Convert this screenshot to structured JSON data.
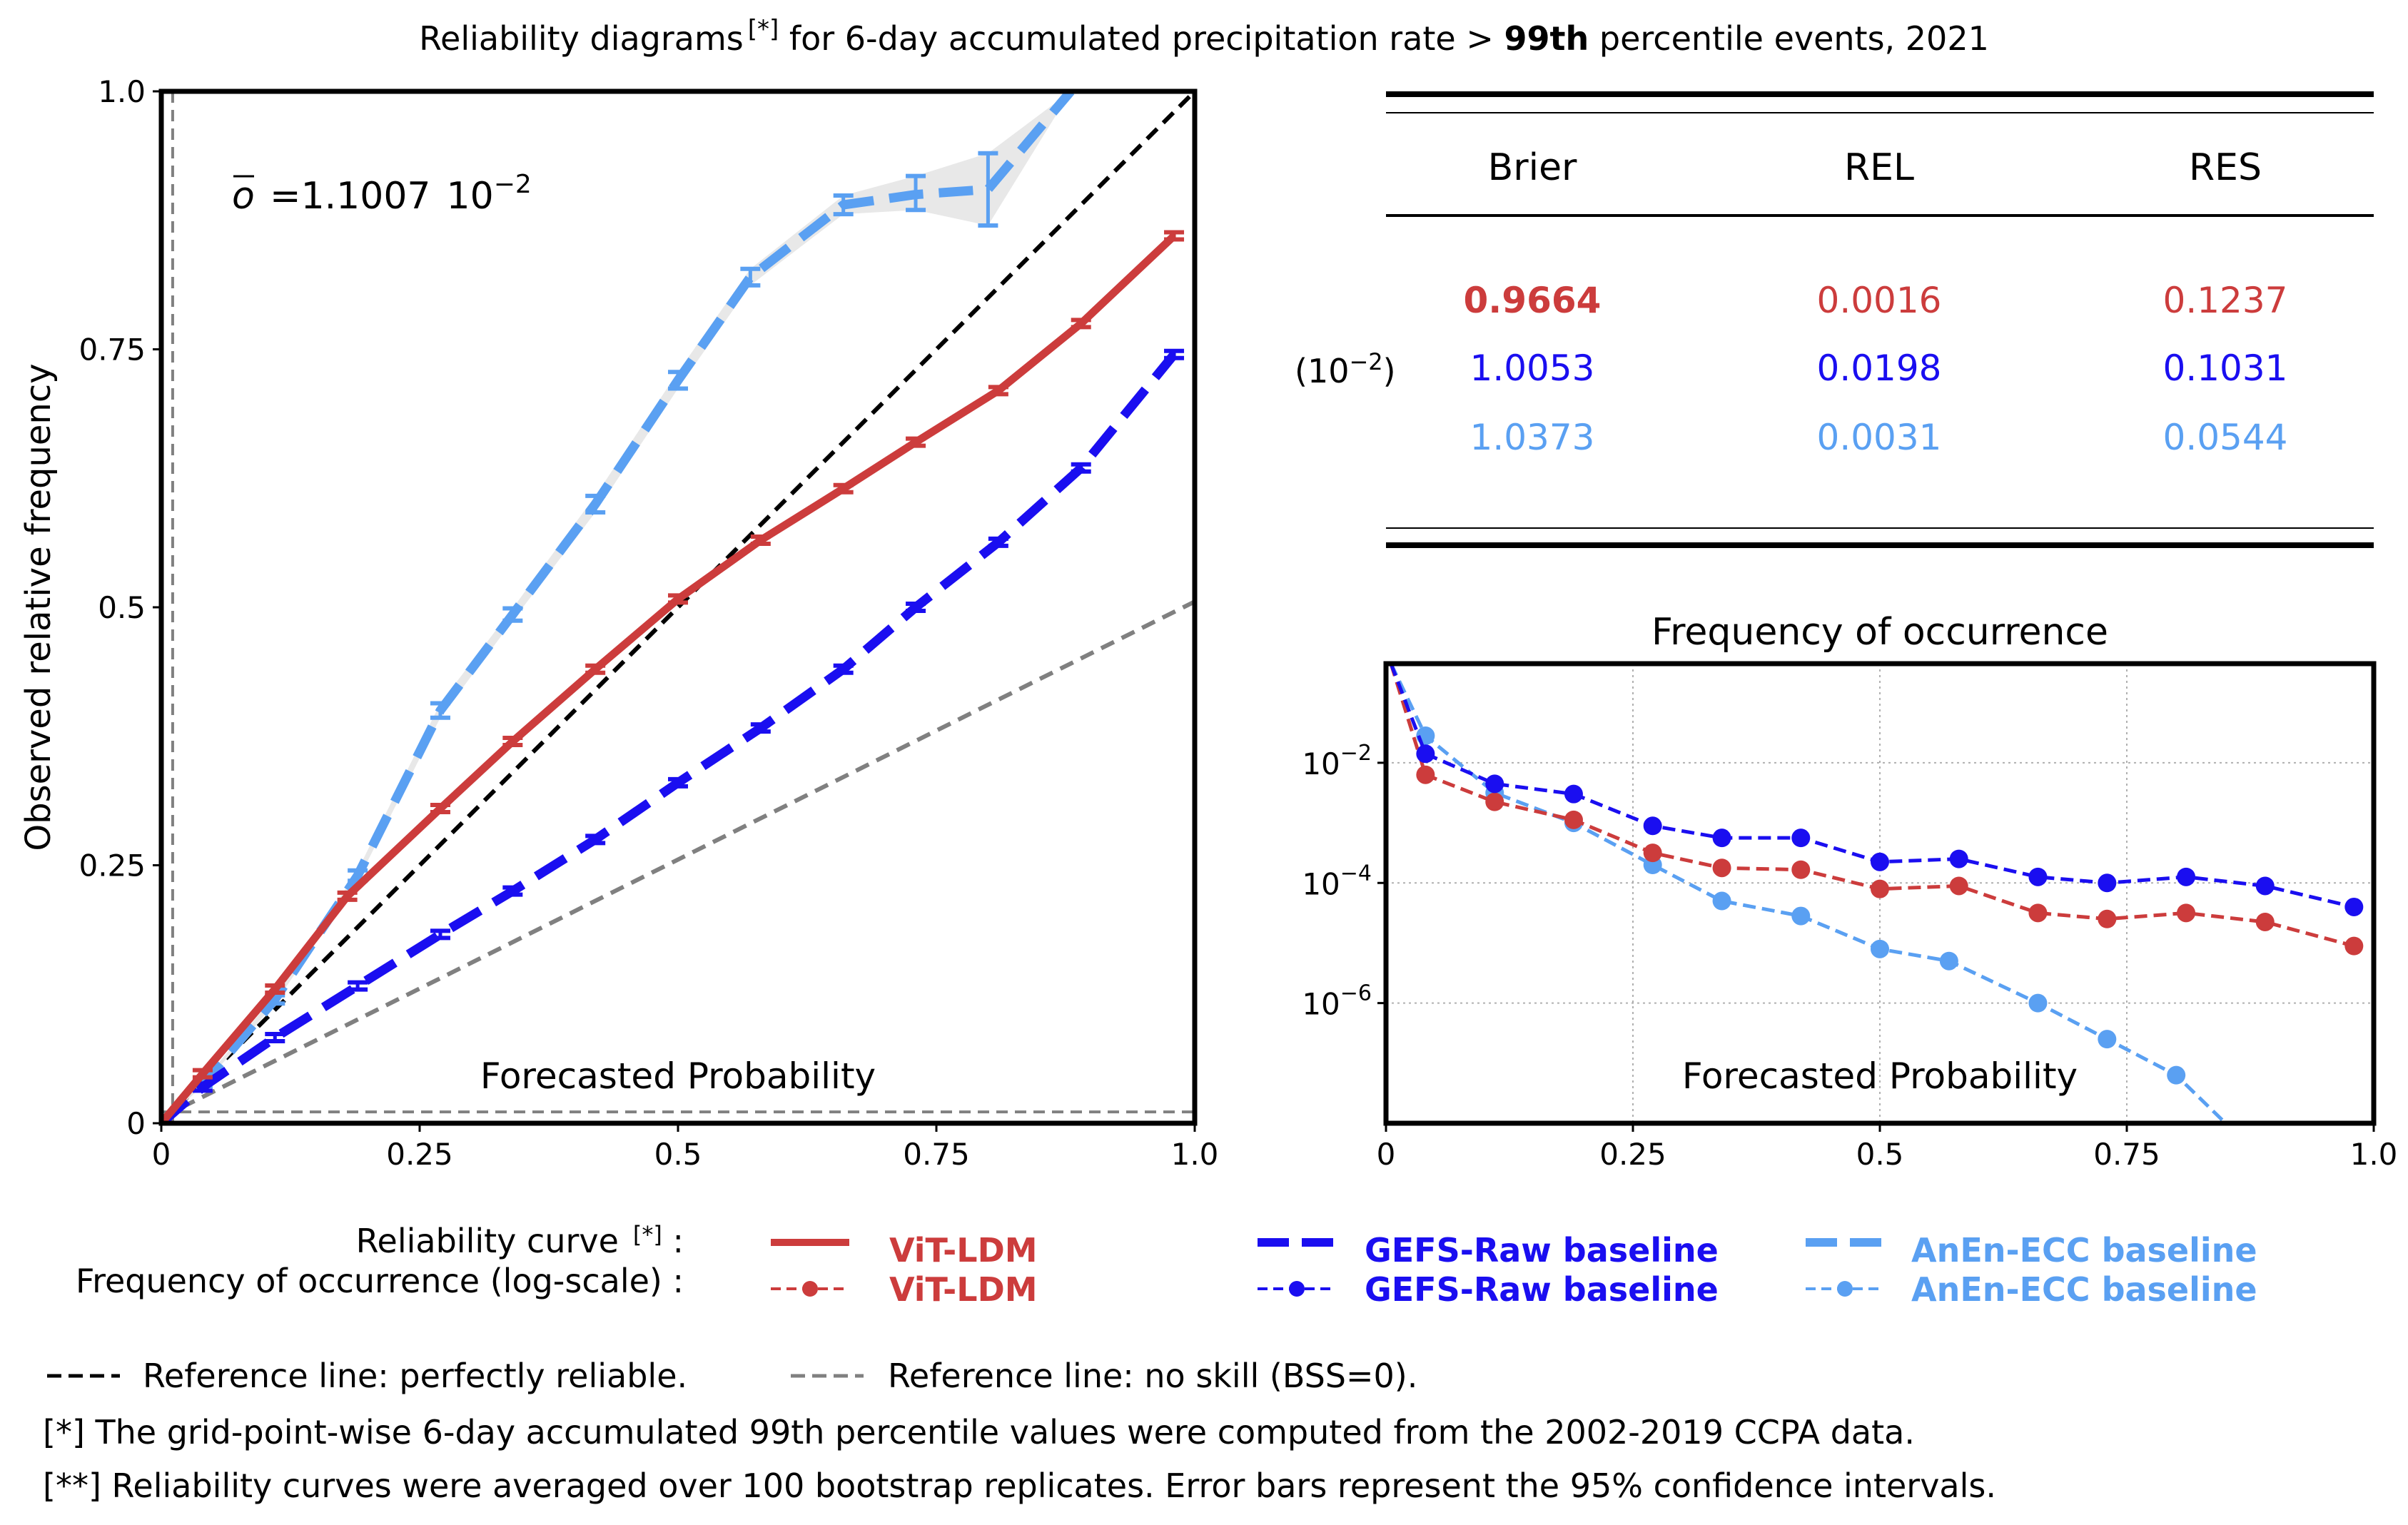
{
  "figure": {
    "title_pre": "Reliability diagrams",
    "title_sup": "[*]",
    "title_mid": " for 6-day accumulated precipitation rate > ",
    "title_bold": "99th",
    "title_post": " percentile events, 2021"
  },
  "colors": {
    "vit": "#cc3c3c",
    "gefs": "#1a0ef0",
    "anen": "#5aa0f2",
    "perfect": "#000000",
    "noskill": "#808080",
    "ci_fill": "#e8e8e8"
  },
  "chart_data": [
    {
      "type": "line",
      "title": "",
      "xlabel": "Forecasted Probability",
      "ylabel": "Observed relative frequency",
      "xlim": [
        0,
        1
      ],
      "ylim": [
        0,
        1
      ],
      "xticks": [
        "0",
        "0.25",
        "0.5",
        "0.75",
        "1.0"
      ],
      "yticks": [
        "0",
        "0.25",
        "0.5",
        "0.75",
        "1.0"
      ],
      "climatology_label": "=1.1007",
      "climatology_exp_base": "10",
      "climatology_exp": "−2",
      "climatology_value": 0.011007,
      "series": [
        {
          "name": "ViT-LDM",
          "x": [
            0,
            0.04,
            0.11,
            0.18,
            0.27,
            0.34,
            0.42,
            0.5,
            0.58,
            0.66,
            0.73,
            0.81,
            0.89,
            0.98
          ],
          "values": [
            0,
            0.048,
            0.13,
            0.22,
            0.305,
            0.37,
            0.44,
            0.508,
            0.565,
            0.615,
            0.66,
            0.71,
            0.775,
            0.86
          ]
        },
        {
          "name": "GEFS-Raw baseline",
          "x": [
            0,
            0.04,
            0.11,
            0.19,
            0.27,
            0.34,
            0.42,
            0.5,
            0.58,
            0.66,
            0.73,
            0.81,
            0.89,
            0.98
          ],
          "values": [
            0,
            0.035,
            0.083,
            0.133,
            0.183,
            0.225,
            0.275,
            0.33,
            0.383,
            0.44,
            0.5,
            0.563,
            0.635,
            0.745
          ]
        },
        {
          "name": "AnEn-ECC baseline",
          "x": [
            0,
            0.04,
            0.11,
            0.19,
            0.27,
            0.34,
            0.42,
            0.5,
            0.57,
            0.66,
            0.73,
            0.8,
            0.88
          ],
          "values": [
            0,
            0.038,
            0.12,
            0.24,
            0.4,
            0.493,
            0.6,
            0.72,
            0.82,
            0.89,
            0.9,
            0.905,
            1.0
          ],
          "ci_low": [
            0,
            0.036,
            0.116,
            0.235,
            0.393,
            0.487,
            0.592,
            0.712,
            0.812,
            0.881,
            0.885,
            0.87,
            1.0
          ],
          "ci_high": [
            0,
            0.04,
            0.124,
            0.245,
            0.407,
            0.499,
            0.608,
            0.728,
            0.828,
            0.899,
            0.918,
            0.94,
            1.0
          ]
        }
      ],
      "reference_lines": [
        {
          "name": "perfectly reliable",
          "x": [
            0,
            1
          ],
          "values": [
            0,
            1
          ]
        },
        {
          "name": "no skill",
          "x": [
            0,
            1
          ],
          "values": [
            0.0055,
            0.5055
          ]
        },
        {
          "name": "climatology horizontal",
          "x": [
            0,
            1
          ],
          "values": [
            0.011,
            0.011
          ]
        },
        {
          "name": "climatology vertical",
          "x": [
            0.011,
            0.011
          ],
          "values": [
            0,
            1
          ]
        }
      ]
    },
    {
      "type": "line",
      "title": "Frequency of occurrence",
      "xlabel": "Forecasted Probability",
      "ylabel": "",
      "xlim": [
        0,
        1
      ],
      "ylim_log10": [
        -8.0,
        -0.35
      ],
      "xticks": [
        "0",
        "0.25",
        "0.5",
        "0.75",
        "1.0"
      ],
      "yticks": [
        {
          "base": "10",
          "exp": "−2",
          "log10": -2
        },
        {
          "base": "10",
          "exp": "−4",
          "log10": -4
        },
        {
          "base": "10",
          "exp": "−6",
          "log10": -6
        }
      ],
      "series": [
        {
          "name": "ViT-LDM",
          "x": [
            0.005,
            0.04,
            0.11,
            0.19,
            0.27,
            0.34,
            0.42,
            0.5,
            0.58,
            0.66,
            0.73,
            0.81,
            0.89,
            0.98
          ],
          "log10_values": [
            -0.35,
            -2.2,
            -2.65,
            -2.95,
            -3.5,
            -3.75,
            -3.78,
            -4.1,
            -4.05,
            -4.5,
            -4.6,
            -4.5,
            -4.65,
            -5.05
          ]
        },
        {
          "name": "GEFS-Raw baseline",
          "x": [
            0.005,
            0.04,
            0.11,
            0.19,
            0.27,
            0.34,
            0.42,
            0.5,
            0.58,
            0.66,
            0.73,
            0.81,
            0.89,
            0.98
          ],
          "log10_values": [
            -0.35,
            -1.85,
            -2.35,
            -2.52,
            -3.05,
            -3.25,
            -3.25,
            -3.65,
            -3.6,
            -3.9,
            -4.0,
            -3.9,
            -4.05,
            -4.4
          ]
        },
        {
          "name": "AnEn-ECC baseline",
          "x": [
            0.005,
            0.04,
            0.11,
            0.19,
            0.27,
            0.34,
            0.42,
            0.5,
            0.57,
            0.66,
            0.73,
            0.8,
            0.85
          ],
          "log10_values": [
            -0.35,
            -1.55,
            -2.5,
            -3.0,
            -3.7,
            -4.3,
            -4.55,
            -5.1,
            -5.3,
            -6.0,
            -6.6,
            -7.2,
            -8.0
          ]
        }
      ]
    }
  ],
  "table": {
    "headers": [
      "Brier",
      "REL",
      "RES"
    ],
    "scale_label": "(10",
    "scale_exp": "−2",
    "scale_close": ")",
    "rows": [
      {
        "model": "ViT-LDM",
        "brier": "0.9664",
        "rel": "0.0016",
        "res": "0.1237",
        "bold_brier": true
      },
      {
        "model": "GEFS-Raw baseline",
        "brier": "1.0053",
        "rel": "0.0198",
        "res": "0.1031",
        "bold_brier": false
      },
      {
        "model": "AnEn-ECC baseline",
        "brier": "1.0373",
        "rel": "0.0031",
        "res": "0.0544",
        "bold_brier": false
      }
    ]
  },
  "legend": {
    "row1_label": "Reliability curve",
    "row1_sup": "[*]",
    "row1_colon": " :",
    "row2_label": "Frequency of occurrence (log-scale) :",
    "entries": [
      {
        "label": "ViT-LDM"
      },
      {
        "label": "GEFS-Raw baseline"
      },
      {
        "label": "AnEn-ECC baseline"
      }
    ],
    "ref_perfect": "Reference line: perfectly reliable.",
    "ref_noskill": "Reference line: no skill (BSS=0)."
  },
  "footnotes": [
    "[*] The grid-point-wise 6-day accumulated 99th percentile values were computed from the 2002-2019 CCPA data.",
    "[**] Reliability curves were averaged over 100 bootstrap replicates. Error bars represent the 95% confidence intervals."
  ]
}
